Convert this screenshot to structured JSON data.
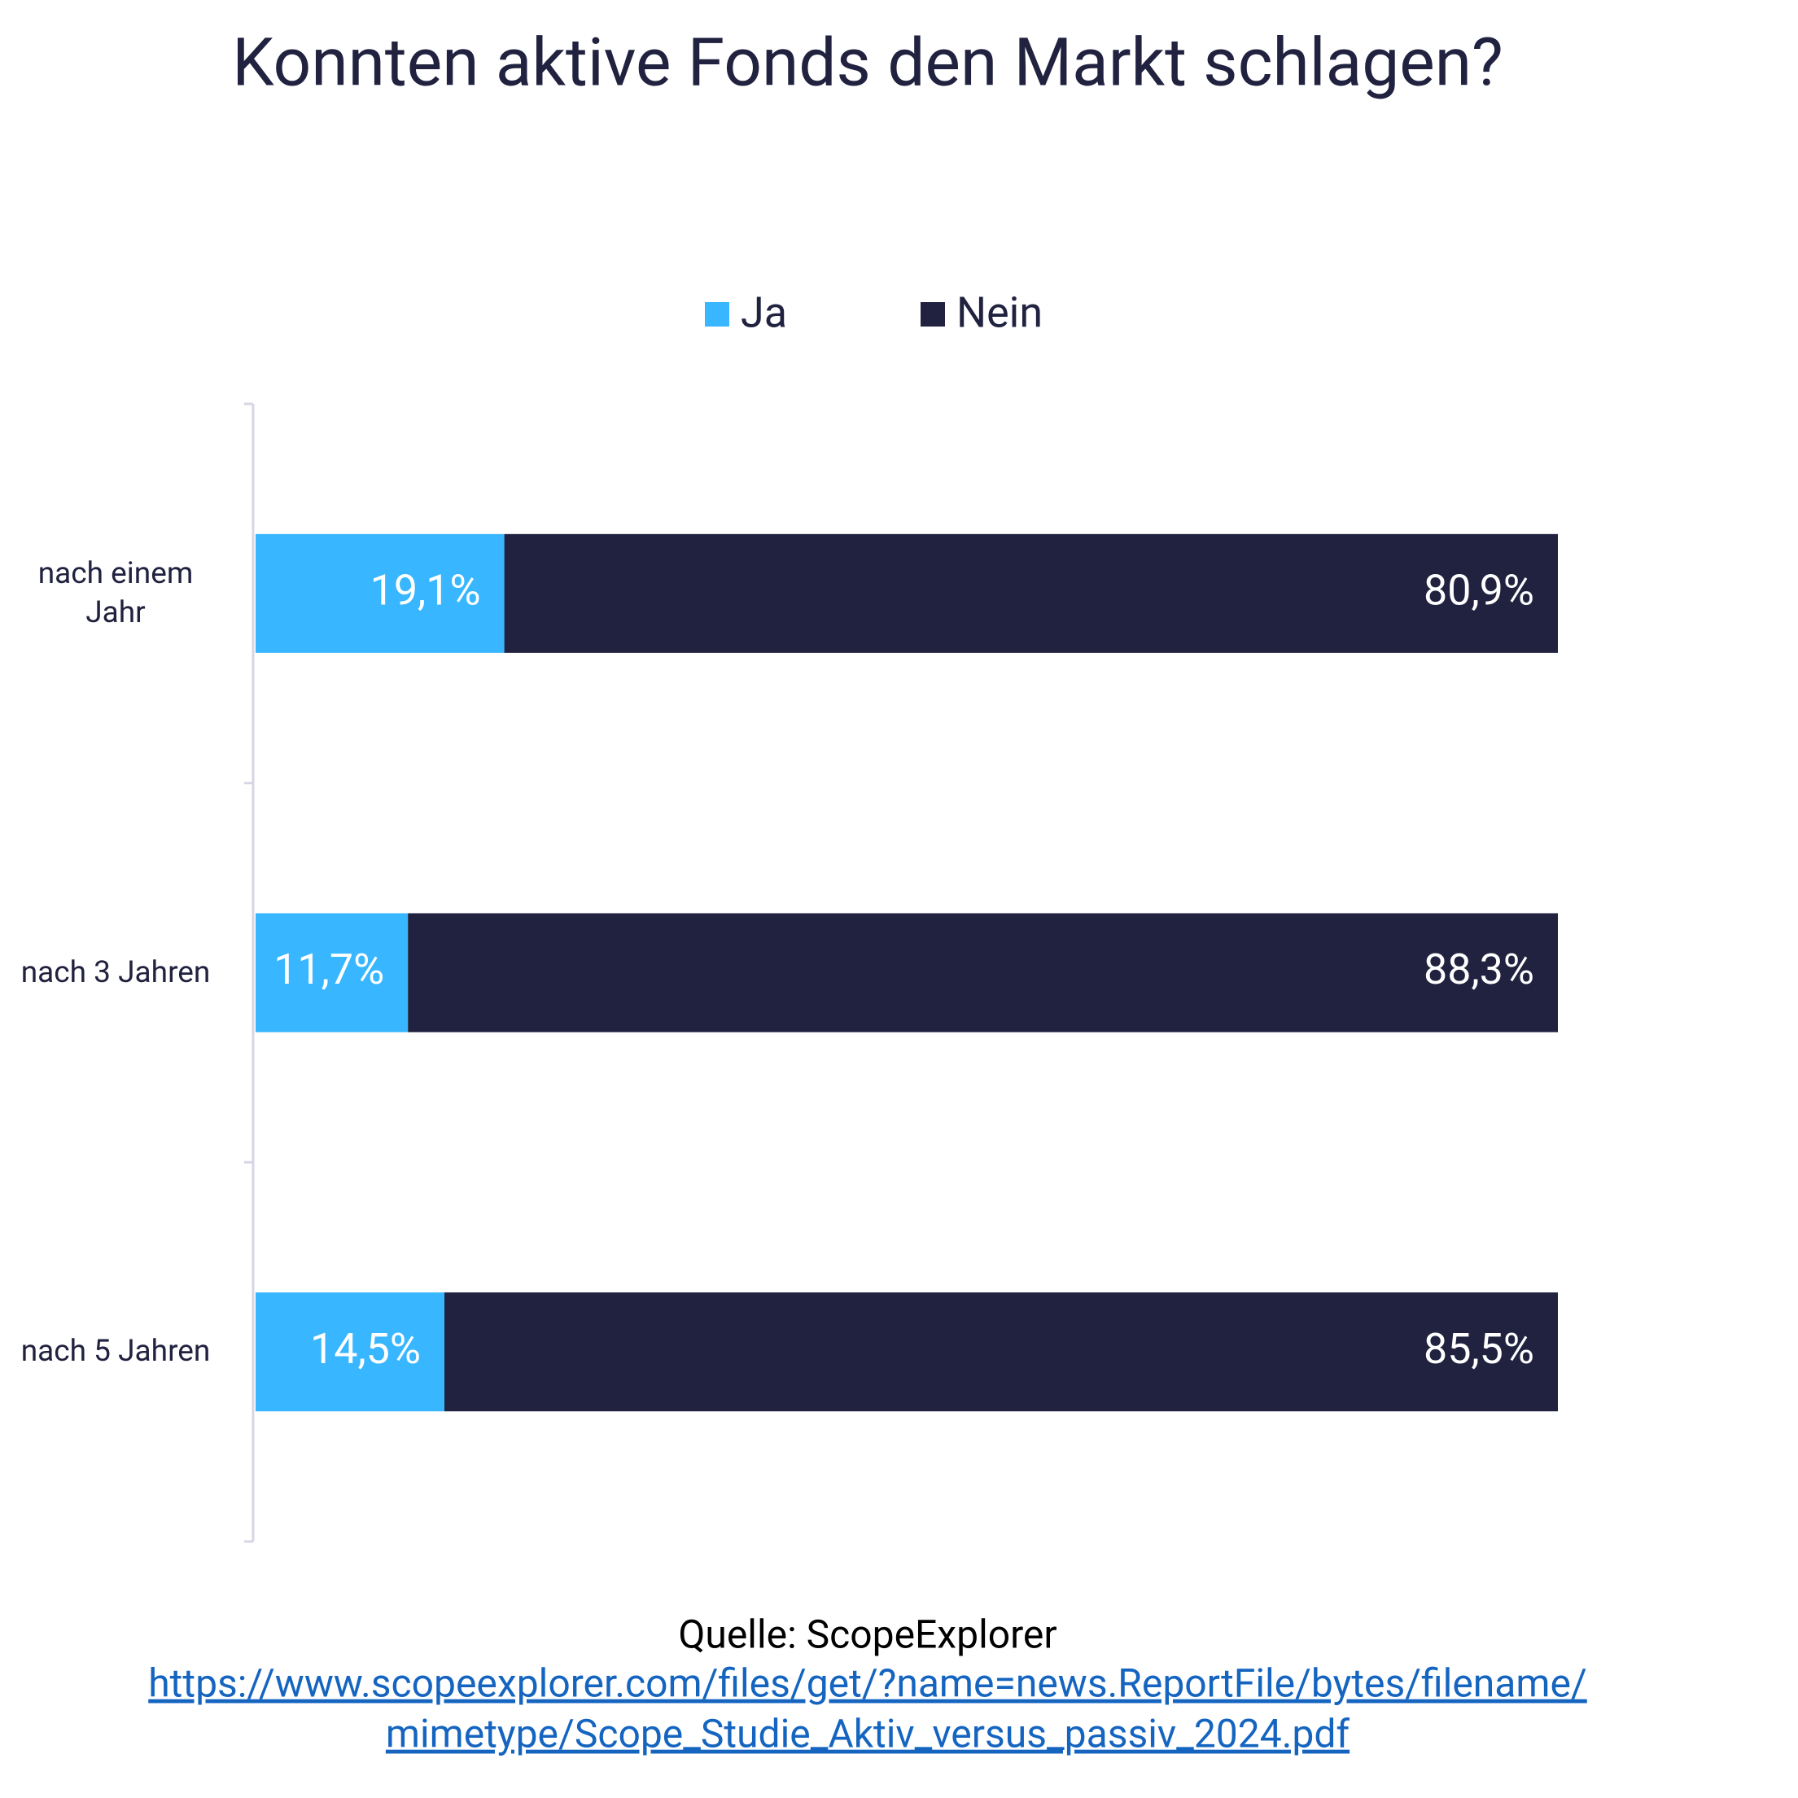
{
  "chart_data": {
    "type": "stacked-bar-horizontal",
    "title": "Konnten aktive Fonds den Markt schlagen?",
    "categories": [
      "nach einem Jahr",
      "nach 3 Jahren",
      "nach 5 Jahren"
    ],
    "series": [
      {
        "name": "Ja",
        "color": "#38b6ff",
        "values": [
          19.1,
          11.7,
          14.5
        ],
        "value_labels": [
          "19,1%",
          "11,7%",
          "14,5%"
        ]
      },
      {
        "name": "Nein",
        "color": "#20223f",
        "values": [
          80.9,
          88.3,
          85.5
        ],
        "value_labels": [
          "80,9%",
          "88,3%",
          "85,5%"
        ]
      }
    ],
    "xlim": [
      0,
      100
    ],
    "grid": false,
    "legend": "top",
    "source": "Quelle: ScopeExplorer",
    "source_link": [
      "https://www.scopeexplorer.com/files/get/?name=news.ReportFile/bytes/filename/",
      "mimetype/Scope_Studie_Aktiv_versus_passiv_2024.pdf"
    ]
  }
}
